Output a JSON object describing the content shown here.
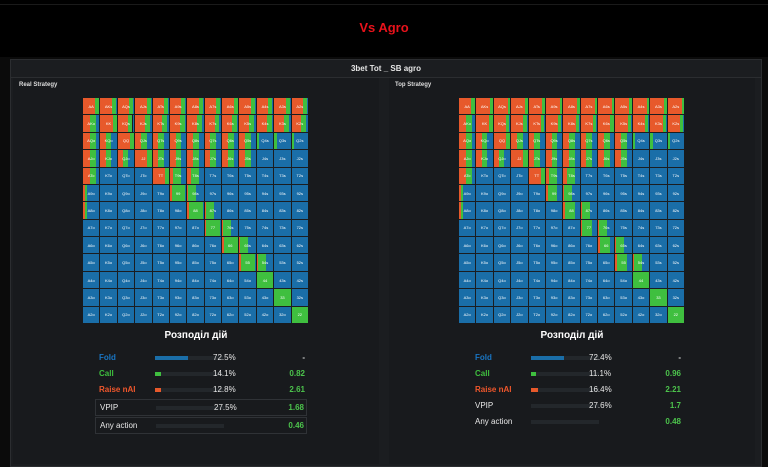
{
  "header": {
    "title": "Vs Agro"
  },
  "panel": {
    "title": "3bet Tot _ SB agro"
  },
  "colors": {
    "fold": "#1a6ea8",
    "call": "#3fbf3f",
    "raise": "#e7592b"
  },
  "hands": [
    [
      "AA",
      "AKs",
      "AQs",
      "AJs",
      "ATs",
      "A9s",
      "A8s",
      "A7s",
      "A6s",
      "A5s",
      "A4s",
      "A3s",
      "A2s"
    ],
    [
      "AKo",
      "KK",
      "KQs",
      "KJs",
      "KTs",
      "K9s",
      "K8s",
      "K7s",
      "K6s",
      "K5s",
      "K4s",
      "K3s",
      "K2s"
    ],
    [
      "AQo",
      "KQo",
      "QQ",
      "QJs",
      "QTs",
      "Q9s",
      "Q8s",
      "Q7s",
      "Q6s",
      "Q5s",
      "Q4s",
      "Q3s",
      "Q2s"
    ],
    [
      "AJo",
      "KJo",
      "QJo",
      "JJ",
      "JTs",
      "J9s",
      "J8s",
      "J7s",
      "J6s",
      "J5s",
      "J4s",
      "J3s",
      "J2s"
    ],
    [
      "ATo",
      "KTo",
      "QTo",
      "JTo",
      "TT",
      "T9s",
      "T8s",
      "T7s",
      "T6s",
      "T5s",
      "T4s",
      "T3s",
      "T2s"
    ],
    [
      "A9o",
      "K9o",
      "Q9o",
      "J9o",
      "T9o",
      "99",
      "98s",
      "97s",
      "96s",
      "95s",
      "94s",
      "93s",
      "92s"
    ],
    [
      "A8o",
      "K8o",
      "Q8o",
      "J8o",
      "T8o",
      "98o",
      "88",
      "87s",
      "86s",
      "85s",
      "84s",
      "83s",
      "82s"
    ],
    [
      "A7o",
      "K7o",
      "Q7o",
      "J7o",
      "T7o",
      "97o",
      "87o",
      "77",
      "76s",
      "75s",
      "74s",
      "73s",
      "72s"
    ],
    [
      "A6o",
      "K6o",
      "Q6o",
      "J6o",
      "T6o",
      "96o",
      "86o",
      "76o",
      "66",
      "65s",
      "64s",
      "63s",
      "62s"
    ],
    [
      "A5o",
      "K5o",
      "Q5o",
      "J5o",
      "T5o",
      "95o",
      "85o",
      "75o",
      "65o",
      "55",
      "54s",
      "53s",
      "52s"
    ],
    [
      "A4o",
      "K4o",
      "Q4o",
      "J4o",
      "T4o",
      "94o",
      "84o",
      "74o",
      "64o",
      "54o",
      "44",
      "43s",
      "42s"
    ],
    [
      "A3o",
      "K3o",
      "Q3o",
      "J3o",
      "T3o",
      "93o",
      "83o",
      "73o",
      "63o",
      "53o",
      "43o",
      "33",
      "32s"
    ],
    [
      "A2o",
      "K2o",
      "Q2o",
      "J2o",
      "T2o",
      "92o",
      "82o",
      "72o",
      "62o",
      "52o",
      "42o",
      "32o",
      "22"
    ]
  ],
  "left": {
    "title": "Real Strategy",
    "dist_title": "Розподіл дій",
    "stats": [
      {
        "label": "Fold",
        "kind": "fold",
        "pct": "72.5%",
        "ev": "-",
        "bar": 0.725
      },
      {
        "label": "Call",
        "kind": "call",
        "pct": "14.1%",
        "ev": "0.82",
        "bar": 0.141
      },
      {
        "label": "Raise nAI",
        "kind": "raise",
        "pct": "12.8%",
        "ev": "2.61",
        "bar": 0.128
      },
      {
        "label": "VPIP",
        "kind": "plain",
        "pct": "27.5%",
        "ev": "1.68",
        "bar": 0
      },
      {
        "label": "Any action",
        "kind": "plain",
        "pct": "",
        "ev": "0.46",
        "bar": 0
      }
    ]
  },
  "right": {
    "title": "Top Strategy",
    "dist_title": "Розподіл дій",
    "stats": [
      {
        "label": "Fold",
        "kind": "fold",
        "pct": "72.4%",
        "ev": "-",
        "bar": 0.724
      },
      {
        "label": "Call",
        "kind": "call",
        "pct": "11.1%",
        "ev": "0.96",
        "bar": 0.111
      },
      {
        "label": "Raise nAI",
        "kind": "raise",
        "pct": "16.4%",
        "ev": "2.21",
        "bar": 0.164
      },
      {
        "label": "VPIP",
        "kind": "plain",
        "pct": "27.6%",
        "ev": "1.7",
        "bar": 0
      },
      {
        "label": "Any action",
        "kind": "plain",
        "pct": "",
        "ev": "0.48",
        "bar": 0
      }
    ]
  }
}
